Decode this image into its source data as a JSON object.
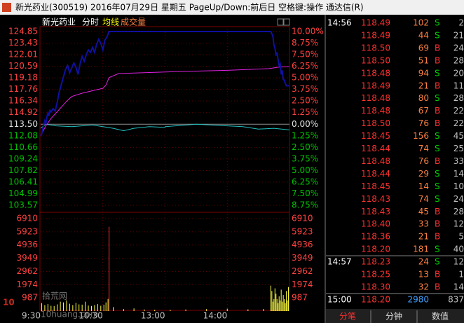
{
  "header": {
    "title": "新光药业(300519) 2016年07月29日 星期五 PageUp/Down:前后日 空格键:操作 通达信(R)"
  },
  "chart": {
    "legend": [
      "新光药业",
      "分时",
      "均线",
      "成交量"
    ],
    "ylim": [
      103.57,
      124.85
    ],
    "prev_close": 113.5,
    "price_ticks": [
      124.85,
      123.43,
      122.01,
      120.59,
      119.18,
      117.76,
      116.34,
      114.92,
      {
        "value": 113.5,
        "label": "113.50"
      },
      112.08,
      110.66,
      109.24,
      107.82,
      106.41,
      104.99,
      103.57
    ],
    "pct_ticks": [
      {
        "value": 10,
        "label": "10.00%"
      },
      {
        "value": 8.75,
        "label": "8.75%"
      },
      {
        "value": 7.5,
        "label": "7.50%"
      },
      {
        "value": 6.25,
        "label": "6.25%"
      },
      {
        "value": 5,
        "label": "5.00%"
      },
      {
        "value": 3.75,
        "label": "3.75%"
      },
      {
        "value": 2.5,
        "label": "2.50%"
      },
      {
        "value": 1.25,
        "label": "1.25%"
      },
      {
        "value": 0,
        "label": "0.00%"
      },
      {
        "value": -1.25,
        "label": "1.25%"
      },
      {
        "value": -2.5,
        "label": "2.50%"
      },
      {
        "value": -3.75,
        "label": "3.75%"
      },
      {
        "value": -5,
        "label": "5.00%"
      },
      {
        "value": -6.25,
        "label": "6.25%"
      },
      {
        "value": -7.5,
        "label": "7.50%"
      },
      {
        "value": -8.75,
        "label": "8.75%"
      }
    ],
    "vlim": [
      0,
      6910
    ],
    "volume_ticks": [
      6910,
      5923,
      4936,
      3949,
      2962,
      1974,
      987
    ],
    "time_labels": [
      "9:30",
      "10:30",
      "13:00",
      "14:00"
    ],
    "price": {
      "color": "#1010a0",
      "x": [
        "9:30",
        "9:31",
        "9:32",
        "9:33",
        "9:34",
        "9:35",
        "9:36",
        "9:37",
        "9:38",
        "9:39",
        "9:40",
        "9:42",
        "9:44",
        "9:46",
        "9:48",
        "9:50",
        "9:52",
        "9:54",
        "9:56",
        "9:58",
        "10:00",
        "10:02",
        "10:04",
        "10:06",
        "10:08",
        "10:10",
        "10:12",
        "10:14",
        "10:16",
        "10:18",
        "10:20",
        "10:22",
        "10:24",
        "10:26",
        "10:28",
        "10:30",
        "10:32",
        "10:34",
        "10:36",
        "14:42",
        "14:44",
        "14:45",
        "14:46",
        "14:47",
        "14:48",
        "14:49",
        "14:50",
        "14:51",
        "14:52",
        "14:53",
        "14:54",
        "14:55",
        "14:56",
        "14:57",
        "14:58",
        "15:00"
      ],
      "values": [
        112.08,
        112.3,
        112.9,
        113.4,
        113.9,
        113.5,
        114.4,
        114.9,
        114.5,
        115.2,
        115.0,
        115.4,
        115.1,
        116.2,
        117.5,
        118.4,
        119.3,
        120.2,
        120.7,
        119.8,
        120.4,
        121.0,
        120.5,
        119.6,
        120.9,
        121.8,
        121.2,
        122.0,
        122.6,
        122.3,
        122.9,
        122.3,
        123.3,
        123.9,
        123.4,
        122.6,
        123.8,
        124.2,
        124.85,
        124.85,
        124.3,
        123.2,
        122.8,
        121.9,
        122.3,
        121.4,
        120.7,
        120.9,
        119.6,
        120.1,
        119.0,
        118.9,
        118.49,
        118.23,
        118.2,
        118.2
      ]
    },
    "average": {
      "color": "#e020e0",
      "x": [
        "9:30",
        "9:35",
        "9:40",
        "9:45",
        "9:50",
        "9:55",
        "10:00",
        "10:10",
        "10:20",
        "10:30",
        "10:33",
        "10:36",
        "10:45",
        "11:30",
        "13:30",
        "14:00",
        "14:40",
        "14:50",
        "15:00"
      ],
      "values": [
        112.1,
        113.3,
        114.2,
        114.9,
        115.6,
        116.3,
        116.9,
        117.3,
        117.6,
        117.9,
        118.3,
        119.2,
        119.7,
        119.9,
        120.0,
        120.1,
        120.3,
        120.5,
        120.55
      ]
    },
    "index": {
      "color": "#20c0c0",
      "x": [
        "9:30",
        "9:35",
        "9:45",
        "10:00",
        "10:20",
        "10:40",
        "10:50",
        "11:00",
        "11:15",
        "11:30",
        "13:00",
        "13:30",
        "14:00",
        "14:15",
        "14:30",
        "14:45",
        "15:00"
      ],
      "values": [
        113.0,
        113.5,
        113.3,
        113.2,
        113.4,
        113.0,
        112.7,
        113.0,
        113.2,
        113.1,
        113.2,
        113.5,
        113.3,
        113.2,
        112.9,
        113.0,
        112.8
      ]
    },
    "volume": {
      "color": "#ff3030",
      "x": [
        "9:31",
        "9:34",
        "9:37",
        "9:40",
        "9:43",
        "9:46",
        "9:49",
        "9:52",
        "9:55",
        "9:58",
        "10:01",
        "10:04",
        "10:07",
        "10:10",
        "10:13",
        "10:16",
        "10:19",
        "10:22",
        "10:25",
        "10:28",
        "10:31",
        "10:33",
        "10:35",
        "10:36",
        "10:40",
        "10:50",
        "11:00",
        "11:10",
        "11:20",
        "13:05",
        "13:20",
        "13:40",
        "14:00",
        "14:20",
        "14:35",
        "14:42",
        "14:43",
        "14:44",
        "14:45",
        "14:46",
        "14:47",
        "14:48",
        "14:49",
        "14:50",
        "14:51",
        "14:52",
        "14:53",
        "14:54",
        "14:55",
        "14:56",
        "14:57",
        "14:58",
        "14:59"
      ],
      "values": [
        600,
        450,
        520,
        400,
        380,
        500,
        700,
        650,
        800,
        550,
        450,
        620,
        500,
        480,
        700,
        420,
        380,
        450,
        520,
        400,
        480,
        650,
        900,
        6300,
        300,
        150,
        200,
        120,
        100,
        90,
        120,
        150,
        180,
        130,
        160,
        1900,
        1500,
        700,
        900,
        1700,
        1300,
        900,
        600,
        1100,
        800,
        1600,
        700,
        1200,
        900,
        600,
        1500,
        800,
        1800
      ]
    }
  },
  "trades": {
    "columns": [
      "分笔",
      "分钟",
      "数值"
    ],
    "rows": [
      [
        "14:56",
        "118.49",
        "102",
        "S",
        "2"
      ],
      [
        "",
        "118.49",
        "44",
        "S",
        "21"
      ],
      [
        "",
        "118.50",
        "69",
        "B",
        "24"
      ],
      [
        "",
        "118.50",
        "51",
        "B",
        "28"
      ],
      [
        "",
        "118.48",
        "94",
        "S",
        "20"
      ],
      [
        "",
        "118.49",
        "21",
        "B",
        "11"
      ],
      [
        "",
        "118.48",
        "80",
        "S",
        "28"
      ],
      [
        "",
        "118.48",
        "67",
        "B",
        "22"
      ],
      [
        "",
        "118.50",
        "76",
        "B",
        "22"
      ],
      [
        "",
        "118.45",
        "156",
        "S",
        "45"
      ],
      [
        "",
        "118.44",
        "74",
        "S",
        "25"
      ],
      [
        "",
        "118.48",
        "76",
        "B",
        "33"
      ],
      [
        "",
        "118.44",
        "29",
        "S",
        "14"
      ],
      [
        "",
        "118.45",
        "14",
        "S",
        "10"
      ],
      [
        "",
        "118.43",
        "74",
        "S",
        "24"
      ],
      [
        "",
        "118.43",
        "45",
        "B",
        "28"
      ],
      [
        "",
        "118.40",
        "33",
        "B",
        "12"
      ],
      [
        "",
        "118.36",
        "21",
        "B",
        "5"
      ],
      [
        "",
        "118.20",
        "181",
        "S",
        "40"
      ],
      [
        "14:57",
        "118.23",
        "24",
        "S",
        "12"
      ],
      [
        "",
        "118.25",
        "13",
        "B",
        "1"
      ],
      [
        "",
        "118.30",
        "32",
        "B",
        "14"
      ],
      [
        "15:00",
        "118.20",
        "2980",
        "",
        "837"
      ]
    ]
  },
  "watermark": {
    "logo": "10",
    "name": "拾荒网",
    "site": "10huang.com"
  }
}
